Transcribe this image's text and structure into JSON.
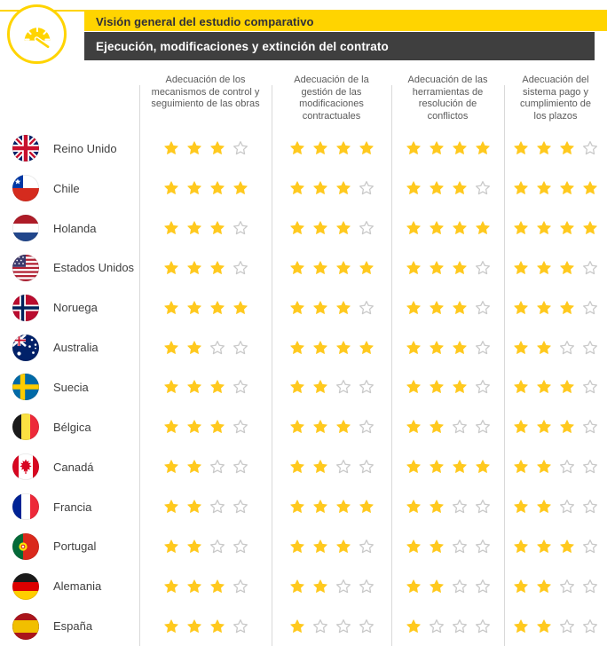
{
  "header": {
    "kicker": "Visión general del estudio comparativo",
    "title": "Ejecución, modificaciones y extinción del contrato",
    "icon": "gauge-icon"
  },
  "chart_data": {
    "type": "table",
    "title": "Visión general del estudio comparativo",
    "subtitle": "Ejecución, modificaciones y extinción del contrato",
    "rating_scale": {
      "min": 0,
      "max": 4,
      "symbol": "star"
    },
    "columns": [
      "Adecuación de los mecanismos de control y seguimiento de las obras",
      "Adecuación de la gestión de las modificaciones contractuales",
      "Adecuación de las herramientas de resolución de conflictos",
      "Adecuación del sistema pago y cumplimiento de los plazos"
    ],
    "rows": [
      {
        "country": "Reino Unido",
        "flag": "gb",
        "ratings": [
          3,
          4,
          4,
          3
        ]
      },
      {
        "country": "Chile",
        "flag": "cl",
        "ratings": [
          4,
          3,
          3,
          4
        ]
      },
      {
        "country": "Holanda",
        "flag": "nl",
        "ratings": [
          3,
          3,
          4,
          4
        ]
      },
      {
        "country": "Estados Unidos",
        "flag": "us",
        "ratings": [
          3,
          4,
          3,
          3
        ]
      },
      {
        "country": "Noruega",
        "flag": "no",
        "ratings": [
          4,
          3,
          3,
          3
        ]
      },
      {
        "country": "Australia",
        "flag": "au",
        "ratings": [
          2,
          4,
          3,
          2
        ]
      },
      {
        "country": "Suecia",
        "flag": "se",
        "ratings": [
          3,
          2,
          3,
          3
        ]
      },
      {
        "country": "Bélgica",
        "flag": "be",
        "ratings": [
          3,
          3,
          2,
          3
        ]
      },
      {
        "country": "Canadá",
        "flag": "ca",
        "ratings": [
          2,
          2,
          4,
          2
        ]
      },
      {
        "country": "Francia",
        "flag": "fr",
        "ratings": [
          2,
          4,
          2,
          2
        ]
      },
      {
        "country": "Portugal",
        "flag": "pt",
        "ratings": [
          2,
          3,
          2,
          3
        ]
      },
      {
        "country": "Alemania",
        "flag": "de",
        "ratings": [
          3,
          2,
          2,
          2
        ]
      },
      {
        "country": "España",
        "flag": "es",
        "ratings": [
          3,
          1,
          1,
          2
        ]
      }
    ]
  },
  "colors": {
    "brand_yellow": "#FFD400",
    "bar_dark": "#3F3F3F",
    "star_filled": "#FFC91E",
    "star_empty_border": "#C9C9C9",
    "divider": "#D9D9D9",
    "header_text": "#5A5A5A",
    "country_text": "#3F3F3F"
  }
}
